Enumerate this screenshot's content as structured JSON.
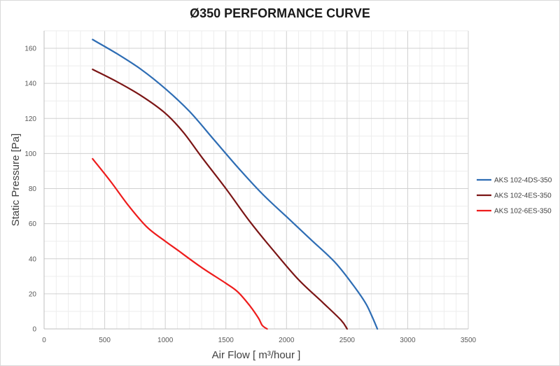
{
  "chart_data": {
    "type": "line",
    "title": "Ø350 PERFORMANCE CURVE",
    "xlabel": "Air Flow [ m³/hour ]",
    "ylabel": "Static Pressure [Pa]",
    "xlim": [
      0,
      3500
    ],
    "ylim": [
      0,
      170
    ],
    "xticks": [
      0,
      500,
      1000,
      1500,
      2000,
      2500,
      3000,
      3500
    ],
    "yticks": [
      0,
      20,
      40,
      60,
      80,
      100,
      120,
      140,
      160
    ],
    "grid": true,
    "legend_position": "right",
    "series": [
      {
        "name": "AKS 102-4DS-350",
        "color": "#2e6db4",
        "points": [
          [
            400,
            165
          ],
          [
            600,
            157
          ],
          [
            800,
            148
          ],
          [
            1000,
            137
          ],
          [
            1200,
            124
          ],
          [
            1400,
            108
          ],
          [
            1600,
            92
          ],
          [
            1800,
            77
          ],
          [
            2000,
            64
          ],
          [
            2200,
            51
          ],
          [
            2400,
            38
          ],
          [
            2550,
            25
          ],
          [
            2650,
            15
          ],
          [
            2700,
            8
          ],
          [
            2750,
            0
          ]
        ]
      },
      {
        "name": "AKS 102-4ES-350",
        "color": "#7b1515",
        "points": [
          [
            400,
            148
          ],
          [
            600,
            141
          ],
          [
            800,
            133
          ],
          [
            1000,
            123
          ],
          [
            1150,
            112
          ],
          [
            1300,
            98
          ],
          [
            1500,
            80
          ],
          [
            1700,
            61
          ],
          [
            1900,
            44
          ],
          [
            2100,
            28
          ],
          [
            2300,
            15
          ],
          [
            2450,
            5
          ],
          [
            2500,
            0
          ]
        ]
      },
      {
        "name": "AKS 102-6ES-350",
        "color": "#ee1c1c",
        "points": [
          [
            400,
            97
          ],
          [
            550,
            84
          ],
          [
            700,
            70
          ],
          [
            850,
            58
          ],
          [
            1000,
            50
          ],
          [
            1100,
            45
          ],
          [
            1300,
            35
          ],
          [
            1500,
            26
          ],
          [
            1600,
            21
          ],
          [
            1700,
            13
          ],
          [
            1770,
            6
          ],
          [
            1800,
            2
          ],
          [
            1840,
            0
          ]
        ]
      }
    ]
  }
}
